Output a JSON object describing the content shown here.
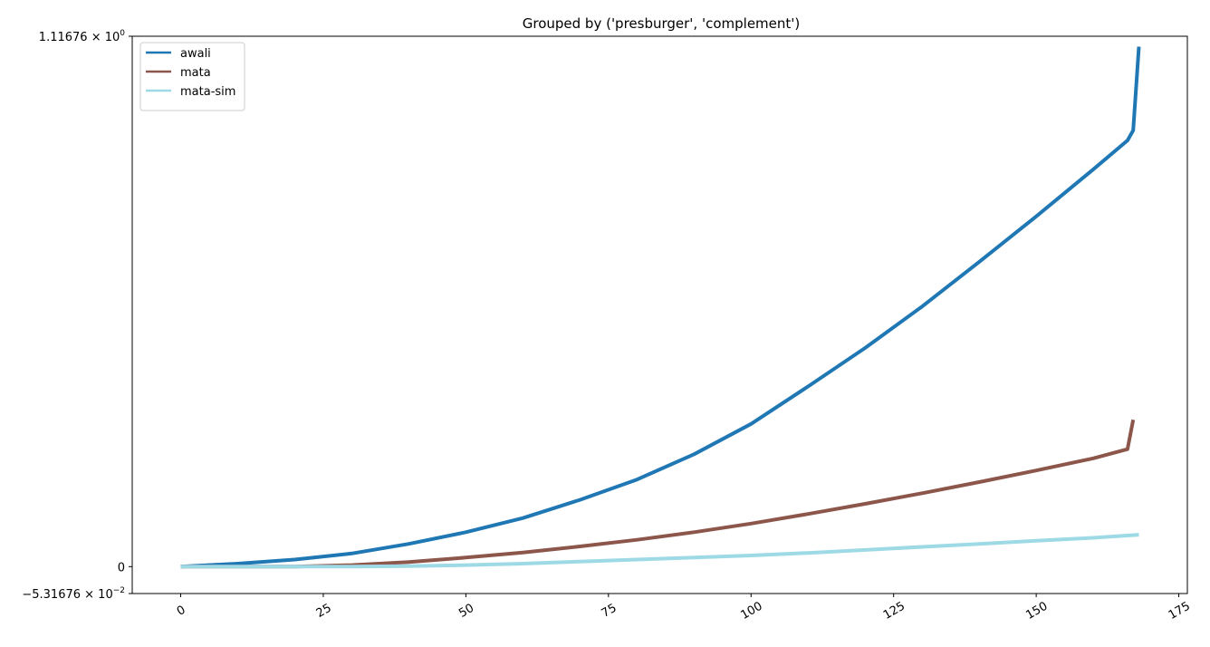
{
  "chart_data": {
    "type": "line",
    "title": "Grouped by ('presburger', 'complement')",
    "xlabel": "",
    "ylabel": "",
    "xlim": [
      -8.5,
      176.5
    ],
    "ylim": [
      -0.0531676,
      1.11676
    ],
    "yscale": "symlog",
    "grid": false,
    "legend_position": "upper-left",
    "x_ticks": [
      0,
      25,
      50,
      75,
      100,
      125,
      150,
      175
    ],
    "y_ticks": [
      {
        "value": 1.11676,
        "mantissa": "1.11676",
        "exponent": "0",
        "sign": ""
      },
      {
        "value": 0,
        "plain": "0"
      },
      {
        "value": -0.0531676,
        "mantissa": "5.31676",
        "exponent": "−2",
        "sign": "−"
      }
    ],
    "series": [
      {
        "name": "awali",
        "color": "#1f77b4",
        "x": [
          0,
          10,
          20,
          30,
          40,
          50,
          60,
          70,
          80,
          90,
          100,
          110,
          120,
          130,
          140,
          150,
          160,
          166,
          167,
          168
        ],
        "y": [
          0,
          0.006,
          0.014,
          0.026,
          0.045,
          0.068,
          0.096,
          0.132,
          0.172,
          0.222,
          0.282,
          0.356,
          0.432,
          0.514,
          0.602,
          0.692,
          0.785,
          0.842,
          0.862,
          1.065
        ]
      },
      {
        "name": "mata",
        "color": "#8c564b",
        "x": [
          0,
          10,
          20,
          30,
          40,
          50,
          60,
          70,
          80,
          90,
          100,
          110,
          120,
          130,
          140,
          150,
          160,
          166,
          167
        ],
        "y": [
          0,
          0,
          0,
          0.003,
          0.009,
          0.018,
          0.028,
          0.04,
          0.053,
          0.068,
          0.085,
          0.104,
          0.124,
          0.145,
          0.167,
          0.19,
          0.214,
          0.232,
          0.29
        ]
      },
      {
        "name": "mata-sim",
        "color": "#9edae5",
        "x": [
          0,
          10,
          20,
          30,
          40,
          50,
          60,
          70,
          80,
          90,
          100,
          110,
          120,
          130,
          140,
          150,
          160,
          168
        ],
        "y": [
          0,
          0,
          0,
          0,
          0.001,
          0.003,
          0.006,
          0.01,
          0.014,
          0.018,
          0.022,
          0.027,
          0.033,
          0.039,
          0.045,
          0.051,
          0.057,
          0.063
        ]
      }
    ]
  }
}
